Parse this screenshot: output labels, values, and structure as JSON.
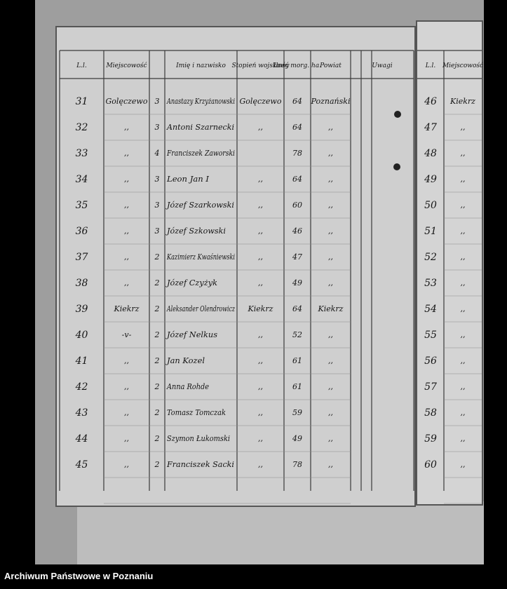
{
  "left_page": {
    "header": {
      "no": "L.l.",
      "place": "Miejscowość",
      "name": "Imię i nazwisko",
      "rank": "Stopień wojskowy",
      "area": "Ilość morg. ha.",
      "district": "Powiat",
      "remarks": "Uwagi"
    },
    "rows": [
      {
        "no": "31",
        "place": "Golęczewo",
        "count": "3",
        "name": "Anastazy Krzyżanowski",
        "rank": "Golęczewo",
        "area": "64",
        "district": "Poznański"
      },
      {
        "no": "32",
        "place": ",,",
        "count": "3",
        "name": "Antoni Szarnecki",
        "rank": ",,",
        "area": "64",
        "district": ",,"
      },
      {
        "no": "33",
        "place": ",,",
        "count": "4",
        "name": "Franciszek Zaworski",
        "area": "78",
        "district": ",,"
      },
      {
        "no": "34",
        "place": ",,",
        "count": "3",
        "name": "Leon Jan I",
        "rank": ",,",
        "area": "64",
        "district": ",,"
      },
      {
        "no": "35",
        "place": ",,",
        "count": "3",
        "name": "Józef Szarkowski",
        "rank": ",,",
        "area": "60",
        "district": ",,"
      },
      {
        "no": "36",
        "place": ",,",
        "count": "3",
        "name": "Józef Szkowski",
        "rank": ",,",
        "area": "46",
        "district": ",,"
      },
      {
        "no": "37",
        "place": ",,",
        "count": "2",
        "name": "Kazimierz Kwaśniewski",
        "rank": ",,",
        "area": "47",
        "district": ",,"
      },
      {
        "no": "38",
        "place": ",,",
        "count": "2",
        "name": "Józef Czyżyk",
        "rank": ",,",
        "area": "49",
        "district": ",,"
      },
      {
        "no": "39",
        "place": "Kiekrz",
        "count": "2",
        "name": "Aleksander Olendrowicz",
        "rank": "Kiekrz",
        "area": "64",
        "district": "Kiekrz"
      },
      {
        "no": "40",
        "place": "-v-",
        "count": "2",
        "name": "Józef Nelkus",
        "rank": ",,",
        "area": "52",
        "district": ",,"
      },
      {
        "no": "41",
        "place": ",,",
        "count": "2",
        "name": "Jan Kozel",
        "rank": ",,",
        "area": "61",
        "district": ",,"
      },
      {
        "no": "42",
        "place": ",,",
        "count": "2",
        "name": "Anna Rohde",
        "rank": ",,",
        "area": "61",
        "district": ",,"
      },
      {
        "no": "43",
        "place": ",,",
        "count": "2",
        "name": "Tomasz Tomczak",
        "rank": ",,",
        "area": "59",
        "district": ",,"
      },
      {
        "no": "44",
        "place": ",,",
        "count": "2",
        "name": "Szymon Łukomski",
        "rank": ",,",
        "area": "49",
        "district": ",,"
      },
      {
        "no": "45",
        "place": ",,",
        "count": "2",
        "name": "Franciszek Sacki",
        "rank": ",,",
        "area": "78",
        "district": ",,"
      }
    ]
  },
  "right_page": {
    "header": {
      "no": "L.l.",
      "place": "Miejscowość"
    },
    "rows": [
      {
        "no": "46",
        "place": "Kiekrz"
      },
      {
        "no": "47",
        "place": ",,"
      },
      {
        "no": "48",
        "place": ",,"
      },
      {
        "no": "49",
        "place": ",,"
      },
      {
        "no": "50",
        "place": ",,"
      },
      {
        "no": "51",
        "place": ",,"
      },
      {
        "no": "52",
        "place": ",,"
      },
      {
        "no": "53",
        "place": ",,"
      },
      {
        "no": "54",
        "place": ",,"
      },
      {
        "no": "55",
        "place": ",,"
      },
      {
        "no": "56",
        "place": ",,"
      },
      {
        "no": "57",
        "place": ",,"
      },
      {
        "no": "58",
        "place": ",,"
      },
      {
        "no": "59",
        "place": ",,"
      },
      {
        "no": "60",
        "place": ",,"
      }
    ]
  },
  "footer": "Archiwum Państwowe w Poznaniu"
}
